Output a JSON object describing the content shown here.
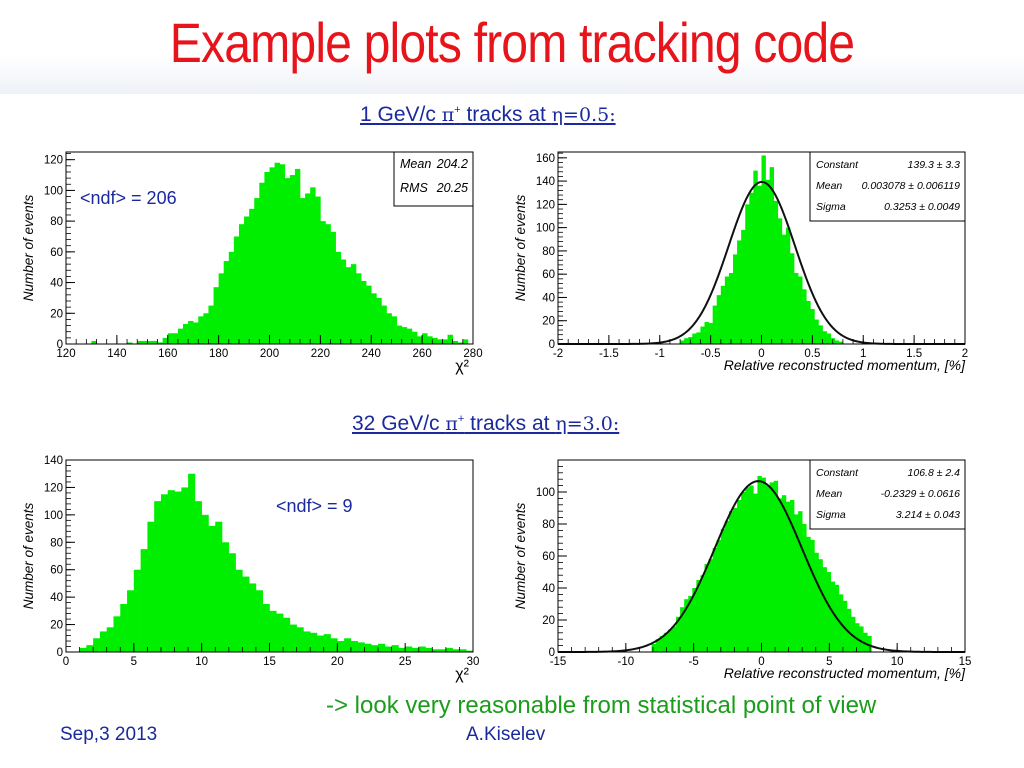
{
  "slide": {
    "title": "Example plots from tracking code",
    "caption_top": {
      "prefix": "1 GeV/c ",
      "particle": "π",
      "charge": "+",
      "mid": " tracks at ",
      "eta": "η=0.5:"
    },
    "caption_bottom": {
      "prefix": "32 GeV/c ",
      "particle": "π",
      "charge": "+",
      "mid": " tracks at ",
      "eta": "η=3.0:"
    },
    "conclusion": "-> look very reasonable from statistical point of view",
    "footer_date": "Sep,3 2013",
    "footer_author": "A.Kiselev",
    "ndf_top": "<ndf> = 206",
    "ndf_bottom": "<ndf> = 9"
  },
  "chart_data": [
    {
      "type": "bar",
      "xlabel": "χ²",
      "ylabel": "Number of events",
      "xlim": [
        120,
        280
      ],
      "ylim": [
        0,
        125
      ],
      "xticks": [
        120,
        140,
        160,
        180,
        200,
        220,
        240,
        260,
        280
      ],
      "yticks": [
        0,
        20,
        40,
        60,
        80,
        100,
        120
      ],
      "xtick_labels": [
        "120",
        "140",
        "160",
        "180",
        "200",
        "220",
        "240",
        "260",
        "280"
      ],
      "ytick_labels": [
        "0",
        "20",
        "40",
        "60",
        "80",
        "100",
        "120"
      ],
      "bin_width": 2,
      "x": [
        120,
        122,
        124,
        126,
        128,
        130,
        132,
        134,
        136,
        138,
        140,
        142,
        144,
        146,
        148,
        150,
        152,
        154,
        156,
        158,
        160,
        162,
        164,
        166,
        168,
        170,
        172,
        174,
        176,
        178,
        180,
        182,
        184,
        186,
        188,
        190,
        192,
        194,
        196,
        198,
        200,
        202,
        204,
        206,
        208,
        210,
        212,
        214,
        216,
        218,
        220,
        222,
        224,
        226,
        228,
        230,
        232,
        234,
        236,
        238,
        240,
        242,
        244,
        246,
        248,
        250,
        252,
        254,
        256,
        258,
        260,
        262,
        264,
        266,
        268,
        270,
        272,
        274,
        276,
        278
      ],
      "values": [
        0,
        0,
        0,
        0,
        0,
        2,
        0,
        0,
        0,
        0,
        0,
        0,
        1,
        0,
        2,
        2,
        2,
        2,
        1,
        4,
        7,
        7,
        10,
        13,
        15,
        14,
        18,
        20,
        25,
        37,
        46,
        54,
        60,
        70,
        78,
        83,
        88,
        95,
        105,
        112,
        115,
        118,
        117,
        108,
        110,
        114,
        95,
        98,
        102,
        96,
        80,
        78,
        73,
        60,
        55,
        50,
        52,
        46,
        41,
        38,
        33,
        30,
        25,
        20,
        18,
        12,
        11,
        10,
        8,
        5,
        7,
        5,
        4,
        3,
        3,
        6,
        2,
        1,
        3,
        0
      ],
      "stats": [
        {
          "label": "Mean",
          "value": "204.2"
        },
        {
          "label": "RMS",
          "value": "20.25"
        }
      ]
    },
    {
      "type": "bar",
      "xlabel": "Relative reconstructed momentum, [%]",
      "ylabel": "Number of events",
      "xlim": [
        -2,
        2
      ],
      "ylim": [
        0,
        165
      ],
      "xticks": [
        -2,
        -1.5,
        -1,
        -0.5,
        0,
        0.5,
        1,
        1.5,
        2
      ],
      "yticks": [
        0,
        20,
        40,
        60,
        80,
        100,
        120,
        140,
        160
      ],
      "xtick_labels": [
        "-2",
        "-1.5",
        "-1",
        "-0.5",
        "0",
        "0.5",
        "1",
        "1.5",
        "2"
      ],
      "ytick_labels": [
        "0",
        "20",
        "40",
        "60",
        "80",
        "100",
        "120",
        "140",
        "160"
      ],
      "bin_width": 0.04,
      "x": [
        -0.8,
        -0.76,
        -0.72,
        -0.68,
        -0.64,
        -0.6,
        -0.56,
        -0.52,
        -0.48,
        -0.44,
        -0.4,
        -0.36,
        -0.32,
        -0.28,
        -0.24,
        -0.2,
        -0.16,
        -0.12,
        -0.08,
        -0.04,
        0.0,
        0.04,
        0.08,
        0.12,
        0.16,
        0.2,
        0.24,
        0.28,
        0.32,
        0.36,
        0.4,
        0.44,
        0.48,
        0.52,
        0.56,
        0.6,
        0.64,
        0.68,
        0.72,
        0.76
      ],
      "values": [
        3,
        5,
        6,
        9,
        10,
        15,
        19,
        18,
        33,
        42,
        50,
        58,
        61,
        77,
        89,
        98,
        120,
        130,
        149,
        136,
        162,
        141,
        152,
        123,
        108,
        94,
        100,
        78,
        61,
        58,
        47,
        37,
        30,
        21,
        16,
        11,
        9,
        5,
        3,
        2
      ],
      "fit": {
        "constant": 139.3,
        "mean": 0.003078,
        "sigma": 0.3253
      },
      "stats": [
        {
          "label": "Constant",
          "value": "139.3 ± 3.3"
        },
        {
          "label": "Mean",
          "value": "0.003078 ± 0.006119"
        },
        {
          "label": "Sigma",
          "value": "0.3253 ± 0.0049"
        }
      ]
    },
    {
      "type": "bar",
      "xlabel": "χ²",
      "ylabel": "Number of events",
      "xlim": [
        0,
        30
      ],
      "ylim": [
        0,
        140
      ],
      "xticks": [
        0,
        5,
        10,
        15,
        20,
        25,
        30
      ],
      "yticks": [
        0,
        20,
        40,
        60,
        80,
        100,
        120,
        140
      ],
      "xtick_labels": [
        "0",
        "5",
        "10",
        "15",
        "20",
        "25",
        "30"
      ],
      "ytick_labels": [
        "0",
        "20",
        "40",
        "60",
        "80",
        "100",
        "120",
        "140"
      ],
      "bin_width": 0.5,
      "x": [
        0,
        0.5,
        1,
        1.5,
        2,
        2.5,
        3,
        3.5,
        4,
        4.5,
        5,
        5.5,
        6,
        6.5,
        7,
        7.5,
        8,
        8.5,
        9,
        9.5,
        10,
        10.5,
        11,
        11.5,
        12,
        12.5,
        13,
        13.5,
        14,
        14.5,
        15,
        15.5,
        16,
        16.5,
        17,
        17.5,
        18,
        18.5,
        19,
        19.5,
        20,
        20.5,
        21,
        21.5,
        22,
        22.5,
        23,
        23.5,
        24,
        24.5,
        25,
        25.5,
        26,
        26.5,
        27,
        27.5,
        28,
        28.5,
        29,
        29.5
      ],
      "values": [
        0,
        0,
        3,
        5,
        10,
        15,
        18,
        26,
        35,
        45,
        60,
        75,
        95,
        110,
        115,
        118,
        117,
        120,
        130,
        110,
        100,
        92,
        95,
        80,
        72,
        60,
        55,
        50,
        45,
        35,
        30,
        28,
        25,
        20,
        18,
        15,
        14,
        12,
        13,
        10,
        8,
        10,
        8,
        7,
        6,
        5,
        6,
        4,
        5,
        3,
        4,
        3,
        4,
        3,
        2,
        2,
        3,
        2,
        2,
        1
      ]
    },
    {
      "type": "bar",
      "xlabel": "Relative reconstructed momentum, [%]",
      "ylabel": "Number of events",
      "xlim": [
        -15,
        15
      ],
      "ylim": [
        0,
        120
      ],
      "xticks": [
        -15,
        -10,
        -5,
        0,
        5,
        10,
        15
      ],
      "yticks": [
        0,
        20,
        40,
        60,
        80,
        100
      ],
      "xtick_labels": [
        "-15",
        "-10",
        "-5",
        "0",
        "5",
        "10",
        "15"
      ],
      "ytick_labels": [
        "0",
        "20",
        "40",
        "60",
        "80",
        "100"
      ],
      "bin_width": 0.3,
      "x": [
        -8.1,
        -7.8,
        -7.5,
        -7.2,
        -6.9,
        -6.6,
        -6.3,
        -6.0,
        -5.7,
        -5.4,
        -5.1,
        -4.8,
        -4.5,
        -4.2,
        -3.9,
        -3.6,
        -3.3,
        -3.0,
        -2.7,
        -2.4,
        -2.1,
        -1.8,
        -1.5,
        -1.2,
        -0.9,
        -0.6,
        -0.3,
        0.0,
        0.3,
        0.6,
        0.9,
        1.2,
        1.5,
        1.8,
        2.1,
        2.4,
        2.7,
        3.0,
        3.3,
        3.6,
        3.9,
        4.2,
        4.5,
        4.8,
        5.1,
        5.4,
        5.7,
        6.0,
        6.3,
        6.6,
        6.9,
        7.2,
        7.5,
        7.8
      ],
      "values": [
        5,
        8,
        10,
        12,
        14,
        16,
        22,
        28,
        33,
        35,
        40,
        45,
        48,
        55,
        58,
        65,
        70,
        77,
        82,
        88,
        90,
        95,
        100,
        103,
        104,
        99,
        110,
        109,
        104,
        106,
        107,
        96,
        98,
        94,
        95,
        86,
        88,
        80,
        72,
        70,
        62,
        58,
        53,
        50,
        44,
        42,
        36,
        32,
        27,
        22,
        18,
        16,
        12,
        10
      ],
      "fit": {
        "constant": 106.8,
        "mean": -0.2329,
        "sigma": 3.214
      },
      "stats": [
        {
          "label": "Constant",
          "value": "106.8 ± 2.4"
        },
        {
          "label": "Mean",
          "value": "-0.2329 ± 0.0616"
        },
        {
          "label": "Sigma",
          "value": "3.214 ± 0.043"
        }
      ]
    }
  ],
  "colors": {
    "bar": "#00ee00",
    "fit": "#111111",
    "title": "#e8141b",
    "caption": "#1a2a9c",
    "conclusion": "#1c9c1c"
  }
}
